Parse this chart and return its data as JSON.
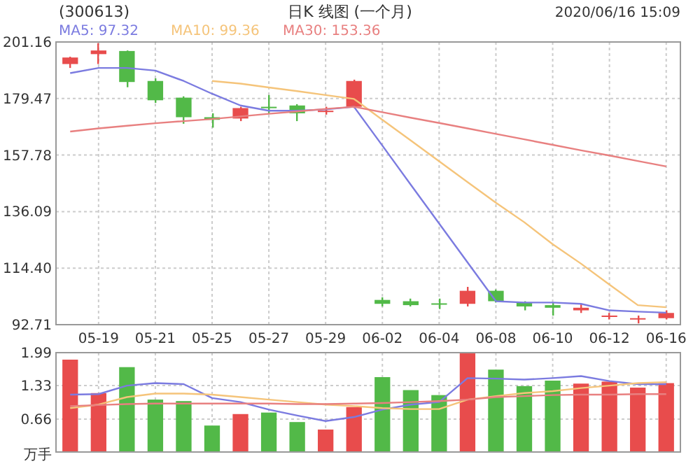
{
  "chart_data": [
    {
      "type": "candlestick",
      "title": "(300613)",
      "subtitle": "日K 线图 (一个月)",
      "annotations": [
        "2020/06/16 15:09"
      ],
      "categories": [
        null,
        "05-19",
        null,
        "05-21",
        null,
        "05-25",
        null,
        "05-27",
        null,
        "05-29",
        null,
        "06-02",
        null,
        "06-04",
        null,
        "06-08",
        null,
        "06-10",
        null,
        "06-12",
        null,
        "06-16"
      ],
      "ohlc": [
        [
          192.7,
          195.5,
          191.2,
          195.2
        ],
        [
          196.5,
          200.7,
          192.7,
          197.9
        ],
        [
          197.7,
          197.9,
          183.8,
          185.8
        ],
        [
          186.2,
          187.2,
          177.8,
          178.8
        ],
        [
          179.8,
          180.3,
          169.8,
          172.3
        ],
        [
          172.3,
          173.8,
          168.3,
          171.3
        ],
        [
          171.8,
          176.3,
          170.8,
          175.8
        ],
        [
          176.3,
          180.8,
          173.8,
          175.8
        ],
        [
          176.8,
          177.3,
          170.8,
          173.8
        ],
        [
          174.3,
          176.3,
          173.3,
          174.8
        ],
        [
          176.3,
          186.7,
          175.8,
          186.2
        ],
        [
          102.2,
          103.2,
          99.7,
          100.7
        ],
        [
          101.7,
          102.7,
          99.7,
          100.2
        ],
        [
          100.9,
          102.7,
          98.7,
          100.7
        ],
        [
          100.7,
          107.2,
          99.7,
          105.7
        ],
        [
          105.7,
          106.2,
          101.2,
          101.7
        ],
        [
          101.2,
          101.7,
          98.2,
          99.7
        ],
        [
          100.2,
          101.2,
          96.2,
          99.2
        ],
        [
          98.2,
          100.7,
          97.2,
          99.2
        ],
        [
          95.9,
          97.2,
          94.7,
          96.2
        ],
        [
          94.9,
          96.2,
          93.2,
          95.2
        ],
        [
          95.2,
          98.2,
          94.7,
          97.2
        ]
      ],
      "colors": [
        "#e84c4c",
        "#e84c4c",
        "#52b948",
        "#52b948",
        "#52b948",
        "#52b948",
        "#e84c4c",
        "#52b948",
        "#52b948",
        "#e84c4c",
        "#e84c4c",
        "#52b948",
        "#52b948",
        "#52b948",
        "#e84c4c",
        "#52b948",
        "#52b948",
        "#52b948",
        "#e84c4c",
        "#e84c4c",
        "#e84c4c",
        "#e84c4c"
      ],
      "series": [
        {
          "type": "line",
          "name": "MA5: 97.32",
          "color": "#7b7be0",
          "values": [
            189.2,
            191.2,
            191.2,
            190.2,
            186.2,
            181.3,
            176.8,
            174.8,
            174.8,
            175.3,
            176.3,
            161.4,
            146.4,
            131.5,
            116.6,
            101.7,
            101.2,
            101.2,
            100.7,
            98.2,
            97.7,
            97.3
          ]
        },
        {
          "type": "line",
          "name": "MA10: 99.36",
          "color": "#f5c47a",
          "values": [
            null,
            null,
            null,
            null,
            null,
            186.2,
            185.2,
            183.7,
            182.3,
            180.8,
            179.3,
            171.3,
            163.4,
            155.4,
            147.4,
            139.5,
            132.0,
            123.6,
            116.1,
            108.1,
            100.2,
            99.4
          ]
        },
        {
          "type": "line",
          "name": "MA30: 153.36",
          "color": "#e88080",
          "values": [
            166.8,
            168.0,
            169.0,
            170.0,
            170.8,
            171.6,
            172.6,
            173.6,
            174.5,
            175.5,
            176.3,
            174.2,
            172.1,
            170.1,
            168.0,
            165.9,
            163.8,
            161.7,
            159.6,
            157.6,
            155.5,
            153.4
          ]
        }
      ],
      "ylim": [
        92.71,
        201.16
      ],
      "yticks": [
        92.71,
        {
          "value": 114.4,
          "label": "114.40"
        },
        136.09,
        157.78,
        179.47,
        201.16
      ],
      "grid": true,
      "legend": "top left"
    },
    {
      "type": "bar",
      "ylabel": "万手",
      "tick_labels": "y",
      "categories": [
        null,
        null,
        null,
        null,
        null,
        null,
        null,
        null,
        null,
        null,
        null,
        null,
        null,
        null,
        null,
        null,
        null,
        null,
        null,
        null,
        null,
        null
      ],
      "series": [
        {
          "type": "bar",
          "values": [
            1.85,
            1.18,
            1.7,
            1.05,
            1.02,
            0.53,
            0.76,
            0.79,
            0.6,
            0.45,
            0.9,
            1.5,
            1.24,
            1.14,
            1.99,
            1.65,
            1.32,
            1.43,
            1.37,
            1.41,
            1.29,
            1.38
          ],
          "colors": [
            "#e84c4c",
            "#e84c4c",
            "#52b948",
            "#52b948",
            "#52b948",
            "#52b948",
            "#e84c4c",
            "#52b948",
            "#52b948",
            "#e84c4c",
            "#e84c4c",
            "#52b948",
            "#52b948",
            "#52b948",
            "#e84c4c",
            "#52b948",
            "#52b948",
            "#52b948",
            "#e84c4c",
            "#e84c4c",
            "#e84c4c",
            "#e84c4c"
          ]
        },
        {
          "type": "line",
          "color": "#7b7be0",
          "values": [
            1.15,
            1.16,
            1.33,
            1.38,
            1.36,
            1.08,
            1.0,
            0.85,
            0.73,
            0.62,
            0.7,
            0.85,
            0.95,
            1.0,
            1.48,
            1.47,
            1.45,
            1.48,
            1.52,
            1.42,
            1.36,
            1.36
          ]
        },
        {
          "type": "line",
          "color": "#f5c47a",
          "values": [
            0.88,
            0.95,
            1.1,
            1.17,
            1.17,
            1.15,
            1.1,
            1.05,
            1.0,
            0.95,
            0.92,
            0.88,
            0.86,
            0.86,
            1.05,
            1.12,
            1.18,
            1.22,
            1.28,
            1.33,
            1.38,
            1.4
          ]
        },
        {
          "type": "line",
          "color": "#e88080",
          "values": [
            0.92,
            0.94,
            0.96,
            0.97,
            0.97,
            0.97,
            0.97,
            0.97,
            0.96,
            0.96,
            0.97,
            0.98,
            1.0,
            1.02,
            1.05,
            1.1,
            1.12,
            1.14,
            1.15,
            1.15,
            1.16,
            1.16
          ]
        }
      ],
      "ylim": [
        0,
        1.99
      ],
      "yticks": [
        0.66,
        1.33,
        1.99
      ],
      "grid": true
    }
  ]
}
